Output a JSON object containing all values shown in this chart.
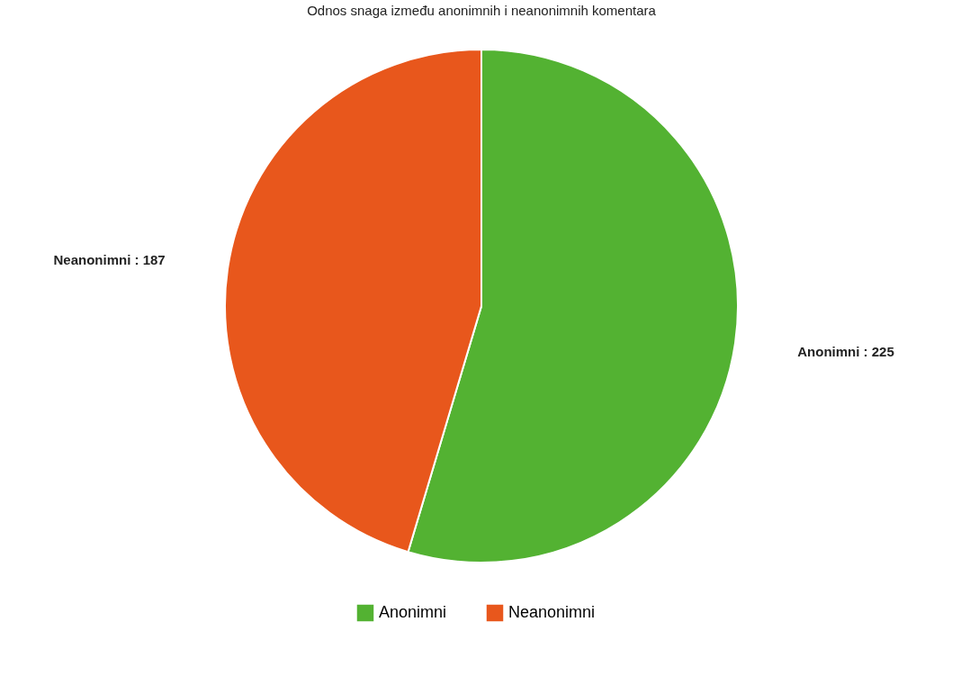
{
  "chart_data": {
    "type": "pie",
    "title": "Odnos snaga između anonimnih i neanonimnih komentara",
    "categories": [
      "Anonimni",
      "Neanonimni"
    ],
    "values": [
      225,
      187
    ],
    "value_labels": [
      "Anonimni : 225",
      "Neanonimni : 187"
    ],
    "colors": [
      "#53b232",
      "#e8571c"
    ],
    "legend": "bottom"
  }
}
